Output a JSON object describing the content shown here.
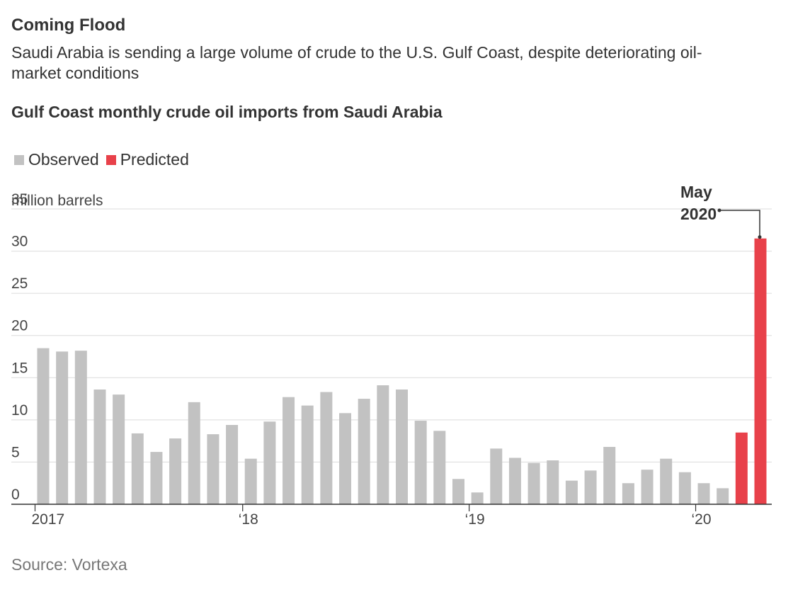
{
  "chart_data": {
    "type": "bar",
    "title": "Coming Flood",
    "subtitle": "Saudi Arabia is sending a large volume of crude to the U.S. Gulf Coast, despite deteriorating oil-market conditions",
    "chart_title": "Gulf Coast monthly crude oil imports from Saudi Arabia",
    "ylabel": "million barrels",
    "ylim": [
      0,
      35
    ],
    "yticks": [
      0,
      5,
      10,
      15,
      20,
      25,
      30,
      35
    ],
    "legend": [
      {
        "label": "Observed",
        "color": "#c2c2c2"
      },
      {
        "label": "Predicted",
        "color": "#e8414a"
      }
    ],
    "x_tick_labels": [
      {
        "label": "2017",
        "index": 0
      },
      {
        "label": "‘18",
        "index": 11
      },
      {
        "label": "‘19",
        "index": 23
      },
      {
        "label": "‘20",
        "index": 35
      }
    ],
    "series": [
      {
        "name": "Observed",
        "values": [
          18.5,
          18.1,
          18.2,
          13.6,
          13.0,
          8.4,
          6.2,
          7.8,
          12.1,
          8.3,
          9.4,
          5.4,
          9.8,
          12.7,
          11.7,
          13.3,
          10.8,
          12.5,
          14.1,
          13.6,
          9.9,
          8.7,
          3.0,
          1.4,
          6.6,
          5.5,
          4.9,
          5.2,
          2.8,
          4.0,
          6.8,
          2.5,
          4.1,
          5.4,
          3.8,
          2.5,
          1.9,
          null,
          null
        ]
      },
      {
        "name": "Predicted",
        "values": [
          null,
          null,
          null,
          null,
          null,
          null,
          null,
          null,
          null,
          null,
          null,
          null,
          null,
          null,
          null,
          null,
          null,
          null,
          null,
          null,
          null,
          null,
          null,
          null,
          null,
          null,
          null,
          null,
          null,
          null,
          null,
          null,
          null,
          null,
          null,
          null,
          null,
          8.5,
          31.5
        ]
      }
    ],
    "annotation": {
      "line1": "May",
      "line2": "2020",
      "index": 38
    },
    "source": "Source: Vortexa"
  }
}
